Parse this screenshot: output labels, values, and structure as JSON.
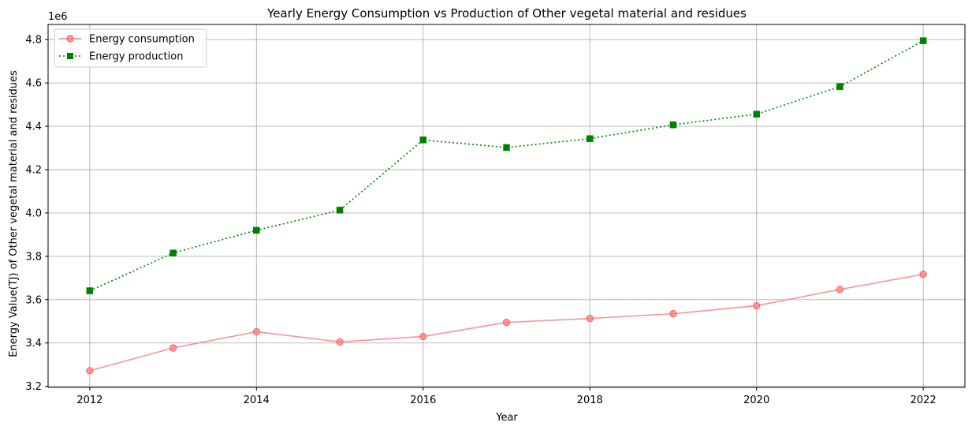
{
  "chart_data": {
    "type": "line",
    "title": "Yearly Energy Consumption vs Production of Other vegetal material and residues",
    "xlabel": "Year",
    "ylabel": "Energy Value(TJ) of Other vegetal material and residues",
    "y_offset_label": "1e6",
    "x": [
      2012,
      2013,
      2014,
      2015,
      2016,
      2017,
      2018,
      2019,
      2020,
      2021,
      2022
    ],
    "x_ticks": [
      2012,
      2014,
      2016,
      2018,
      2020,
      2022
    ],
    "y_ticks": [
      3.2,
      3.4,
      3.6,
      3.8,
      4.0,
      4.2,
      4.4,
      4.6,
      4.8
    ],
    "y_tick_labels": [
      "3.2",
      "3.4",
      "3.6",
      "3.8",
      "4.0",
      "4.2",
      "4.4",
      "4.6",
      "4.8"
    ],
    "xlim": [
      2011.5,
      2022.5
    ],
    "ylim": [
      3.195,
      4.87
    ],
    "grid": true,
    "legend_position": "top-left",
    "series": [
      {
        "name": "Energy consumption",
        "color": "#ff7f7f",
        "marker": "circle",
        "linestyle": "solid",
        "values": [
          3.272,
          3.377,
          3.452,
          3.405,
          3.43,
          3.495,
          3.513,
          3.535,
          3.572,
          3.647,
          3.717
        ]
      },
      {
        "name": "Energy production",
        "color": "#008000",
        "marker": "square",
        "linestyle": "dotted",
        "values": [
          3.641,
          3.815,
          3.92,
          4.013,
          4.337,
          4.302,
          4.343,
          4.407,
          4.456,
          4.583,
          4.795
        ]
      }
    ]
  }
}
